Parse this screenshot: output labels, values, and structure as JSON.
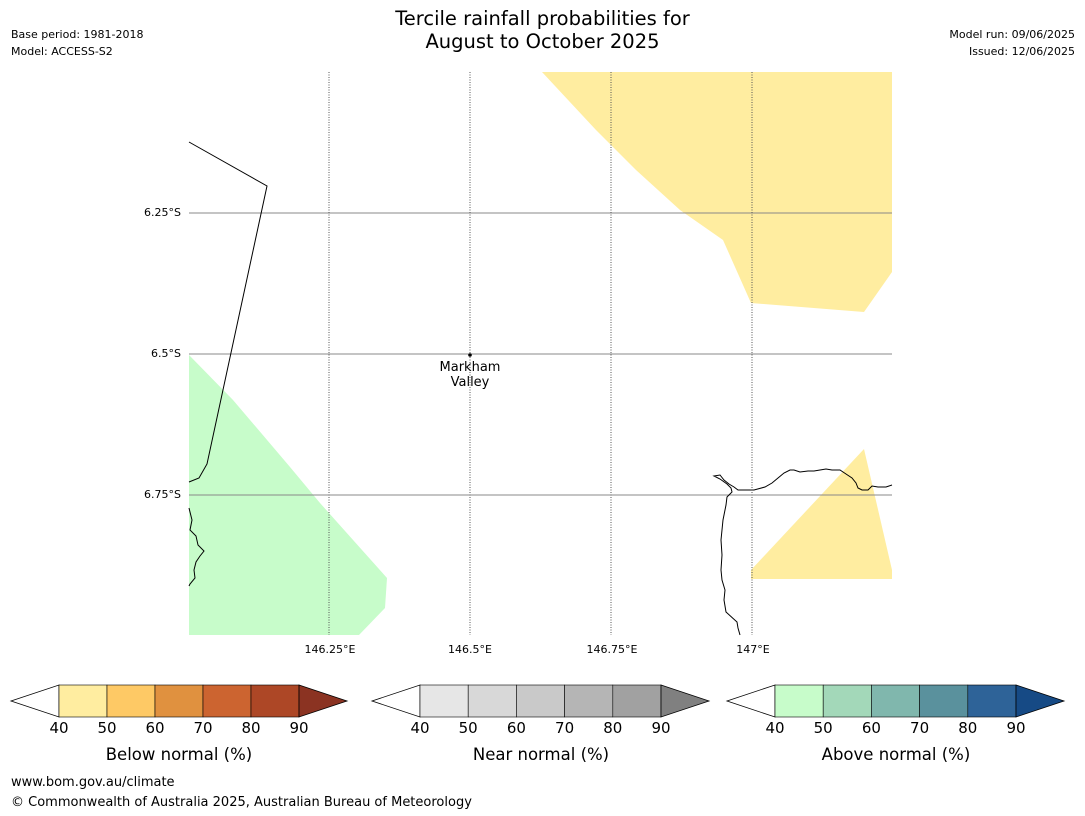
{
  "header": {
    "title_line1": "Tercile rainfall probabilities for",
    "title_line2": "August to October 2025",
    "base_period": "Base period: 1981-2018",
    "model": "Model: ACCESS-S2",
    "model_run": "Model run: 09/06/2025",
    "issued": "Issued: 12/06/2025"
  },
  "map": {
    "lat_labels": [
      "6.25°S",
      "6.5°S",
      "6.75°S"
    ],
    "lon_labels": [
      "146.25°E",
      "146.5°E",
      "146.75°E",
      "147°E"
    ],
    "place": {
      "name_line1": "Markham",
      "name_line2": "Valley"
    },
    "colors": {
      "below_50": "#ffeda0",
      "above_40": "#c7fcca",
      "coast": "#000000",
      "gridline": "#888888"
    }
  },
  "legends": [
    {
      "label": "Below normal (%)",
      "ticks": [
        "40",
        "50",
        "60",
        "70",
        "80",
        "90"
      ],
      "colors": [
        "#ffeda0",
        "#fec965",
        "#e0913f",
        "#cc6430",
        "#ad4726",
        "#8b3322"
      ]
    },
    {
      "label": "Near normal (%)",
      "ticks": [
        "40",
        "50",
        "60",
        "70",
        "80",
        "90"
      ],
      "colors": [
        "#e6e6e6",
        "#d8d8d8",
        "#c9c9c9",
        "#b5b5b5",
        "#a1a1a1",
        "#808080"
      ]
    },
    {
      "label": "Above normal (%)",
      "ticks": [
        "40",
        "50",
        "60",
        "70",
        "80",
        "90"
      ],
      "colors": [
        "#c7fcca",
        "#a3d8b9",
        "#80b7ad",
        "#5a919d",
        "#2e6398",
        "#164a85"
      ]
    }
  ],
  "footer": {
    "url": "www.bom.gov.au/climate",
    "copyright": "© Commonwealth of Australia 2025, Australian Bureau of Meteorology"
  }
}
